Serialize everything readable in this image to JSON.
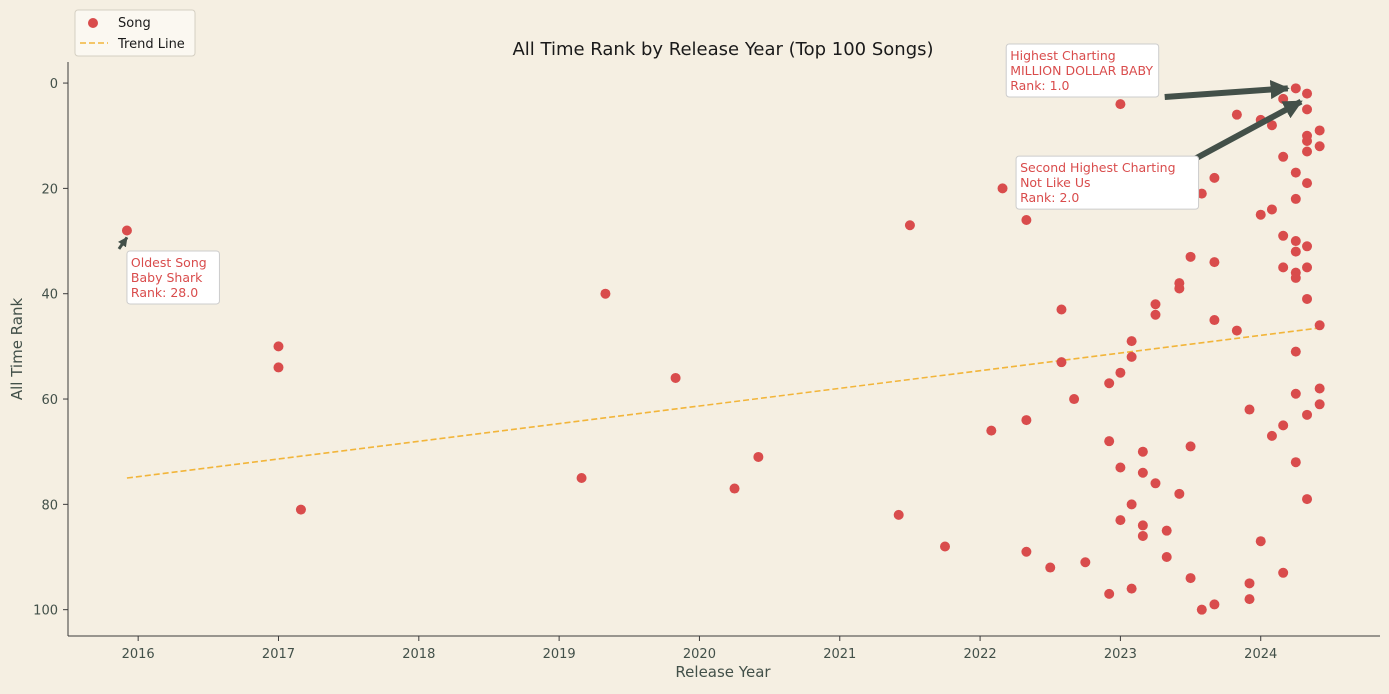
{
  "chart_data": {
    "type": "scatter",
    "title": "All Time Rank by Release Year (Top 100 Songs)",
    "xlabel": "Release Year",
    "ylabel": "All Time Rank",
    "xlim": [
      2015.5,
      2024.85
    ],
    "ylim": [
      105,
      -4
    ],
    "y_inverted": true,
    "x_ticks": [
      2016,
      2017,
      2018,
      2019,
      2020,
      2021,
      2022,
      2023,
      2024
    ],
    "y_ticks": [
      0,
      20,
      40,
      60,
      80,
      100
    ],
    "grid": false,
    "legend": {
      "placement": "top-left",
      "entries": [
        "Song",
        "Trend Line"
      ]
    },
    "colors": {
      "song": "#d94c4c",
      "trend": "#f2b53a",
      "arrow": "#435049",
      "text": "#425049",
      "background": "#f5efe2"
    },
    "series": [
      {
        "name": "Song",
        "points": [
          [
            2015.92,
            28
          ],
          [
            2017.0,
            50
          ],
          [
            2017.0,
            54
          ],
          [
            2017.16,
            81
          ],
          [
            2019.16,
            75
          ],
          [
            2019.33,
            40
          ],
          [
            2019.83,
            56
          ],
          [
            2020.25,
            77
          ],
          [
            2020.42,
            71
          ],
          [
            2021.42,
            82
          ],
          [
            2021.5,
            27
          ],
          [
            2021.75,
            88
          ],
          [
            2022.08,
            66
          ],
          [
            2022.16,
            20
          ],
          [
            2022.33,
            26
          ],
          [
            2022.33,
            64
          ],
          [
            2022.33,
            89
          ],
          [
            2022.5,
            92
          ],
          [
            2022.58,
            43
          ],
          [
            2022.58,
            53
          ],
          [
            2022.67,
            60
          ],
          [
            2022.75,
            91
          ],
          [
            2022.92,
            57
          ],
          [
            2022.92,
            68
          ],
          [
            2022.92,
            97
          ],
          [
            2023.0,
            4
          ],
          [
            2023.0,
            55
          ],
          [
            2023.0,
            73
          ],
          [
            2023.0,
            83
          ],
          [
            2023.08,
            49
          ],
          [
            2023.08,
            52
          ],
          [
            2023.08,
            80
          ],
          [
            2023.08,
            96
          ],
          [
            2023.16,
            70
          ],
          [
            2023.16,
            74
          ],
          [
            2023.16,
            84
          ],
          [
            2023.16,
            86
          ],
          [
            2023.25,
            42
          ],
          [
            2023.25,
            44
          ],
          [
            2023.25,
            76
          ],
          [
            2023.33,
            85
          ],
          [
            2023.33,
            90
          ],
          [
            2023.42,
            38
          ],
          [
            2023.42,
            39
          ],
          [
            2023.42,
            78
          ],
          [
            2023.5,
            33
          ],
          [
            2023.5,
            69
          ],
          [
            2023.5,
            94
          ],
          [
            2023.58,
            21
          ],
          [
            2023.58,
            100
          ],
          [
            2023.67,
            18
          ],
          [
            2023.67,
            34
          ],
          [
            2023.67,
            45
          ],
          [
            2023.67,
            99
          ],
          [
            2023.83,
            6
          ],
          [
            2023.83,
            47
          ],
          [
            2023.92,
            62
          ],
          [
            2023.92,
            95
          ],
          [
            2023.92,
            98
          ],
          [
            2024.0,
            7
          ],
          [
            2024.0,
            25
          ],
          [
            2024.0,
            87
          ],
          [
            2024.08,
            8
          ],
          [
            2024.08,
            24
          ],
          [
            2024.08,
            67
          ],
          [
            2024.16,
            3
          ],
          [
            2024.16,
            14
          ],
          [
            2024.16,
            29
          ],
          [
            2024.16,
            35
          ],
          [
            2024.16,
            65
          ],
          [
            2024.16,
            93
          ],
          [
            2024.25,
            1
          ],
          [
            2024.25,
            17
          ],
          [
            2024.25,
            22
          ],
          [
            2024.25,
            30
          ],
          [
            2024.25,
            32
          ],
          [
            2024.25,
            36
          ],
          [
            2024.25,
            37
          ],
          [
            2024.25,
            51
          ],
          [
            2024.25,
            59
          ],
          [
            2024.25,
            72
          ],
          [
            2024.33,
            2
          ],
          [
            2024.33,
            5
          ],
          [
            2024.33,
            10
          ],
          [
            2024.33,
            11
          ],
          [
            2024.33,
            13
          ],
          [
            2024.33,
            19
          ],
          [
            2024.33,
            31
          ],
          [
            2024.33,
            35
          ],
          [
            2024.33,
            41
          ],
          [
            2024.33,
            63
          ],
          [
            2024.33,
            79
          ],
          [
            2024.42,
            9
          ],
          [
            2024.42,
            12
          ],
          [
            2024.42,
            46
          ],
          [
            2024.42,
            58
          ],
          [
            2024.42,
            61
          ]
        ]
      },
      {
        "name": "Trend Line",
        "style": "dashed",
        "points": [
          [
            2015.92,
            75
          ],
          [
            2024.42,
            46.5
          ]
        ]
      }
    ],
    "annotations": [
      {
        "id": "oldest",
        "lines": [
          "Oldest Song",
          "Baby Shark",
          "Rank: 28.0"
        ],
        "target": [
          2015.92,
          28
        ],
        "text_pos": [
          2015.92,
          31.5
        ]
      },
      {
        "id": "highest",
        "lines": [
          "Highest Charting",
          "MILLION DOLLAR BABY",
          "Rank: 1.0"
        ],
        "target": [
          2024.25,
          1
        ],
        "text_pos": [
          2023.33,
          1.5
        ]
      },
      {
        "id": "second",
        "lines": [
          "Second Highest Charting",
          "Not Like Us",
          "Rank: 2.0"
        ],
        "target": [
          2024.33,
          2
        ],
        "text_pos": [
          2023.5,
          13.5
        ]
      }
    ]
  }
}
